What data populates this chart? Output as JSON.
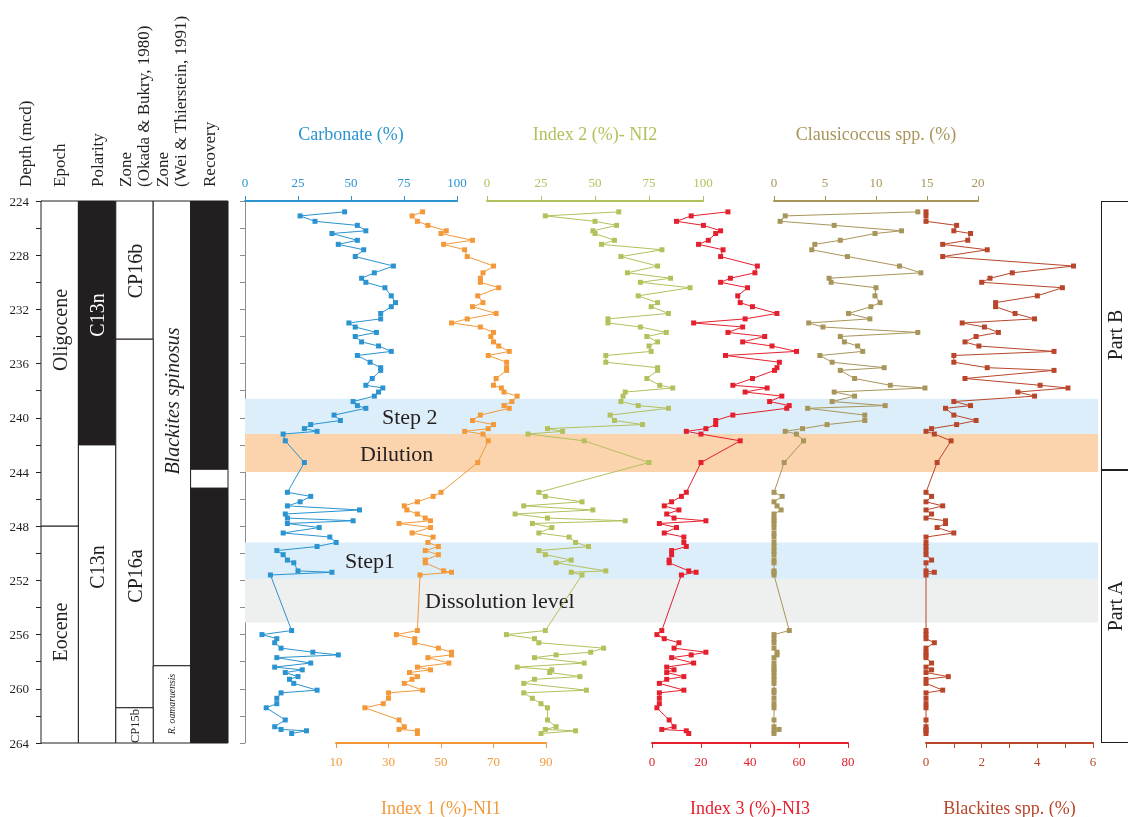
{
  "chart_data": [
    {
      "type": "bar",
      "ylabel": "Depth (mcd)",
      "categories": [
        "Epoch",
        "Polarity",
        "Zone (Okada & Bukry, 1980)",
        "Zone (Wei & Thierstein, 1991)",
        "Recovery"
      ],
      "ylim": [
        264,
        224
      ],
      "yticks": [
        224,
        {
          "value": 226,
          "label": null
        },
        228,
        {
          "value": 230,
          "label": null
        },
        232,
        {
          "value": 234,
          "label": null
        },
        236,
        {
          "value": 238,
          "label": null
        },
        240,
        {
          "value": 242,
          "label": null
        },
        244,
        {
          "value": 246,
          "label": null
        },
        248,
        {
          "value": 250,
          "label": null
        },
        252,
        {
          "value": 254,
          "label": null
        },
        256,
        {
          "value": 258,
          "label": null
        },
        260,
        {
          "value": 262,
          "label": null
        },
        264
      ],
      "series": [
        {
          "base": [
            224,
            224,
            224,
            224,
            224
          ],
          "values": [
            24,
            18,
            10.2,
            34.3,
            19.8
          ],
          "colors": [
            "#ffffff",
            "#231f20",
            "#ffffff",
            "#ffffff",
            "#231f20"
          ]
        },
        {
          "base": [
            248,
            242,
            234.2,
            258.3,
            243.8
          ],
          "values": [
            16,
            22,
            27.2,
            5.7,
            1.4
          ],
          "colors": [
            "#ffffff",
            "#ffffff",
            "#ffffff",
            "#ffffff",
            "#ffffff"
          ]
        },
        {
          "base": [
            null,
            null,
            261.4,
            null,
            245.2
          ],
          "values": [
            null,
            null,
            2.6,
            null,
            18.8
          ],
          "colors": [
            null,
            null,
            "#ffffff",
            null,
            "#231f20"
          ]
        }
      ],
      "annotations": [
        "Oligocene",
        "Eocene",
        "C13n",
        "C13n",
        "CP16b",
        "CP16a",
        "CP15b",
        "Blackites spinosus",
        "R. oamaruensis"
      ]
    },
    {
      "type": "line",
      "orientation": "horizontal",
      "xlabel": "Carbonate (%)",
      "xlim": [
        0,
        100
      ],
      "xticks": [
        0,
        25,
        50,
        75,
        100
      ],
      "ylim": [
        264,
        224
      ],
      "yticks": [
        224,
        {
          "value": 226,
          "label": null
        },
        228,
        {
          "value": 230,
          "label": null
        },
        232,
        {
          "value": 234,
          "label": null
        },
        236,
        {
          "value": 238,
          "label": null
        },
        240,
        {
          "value": 242,
          "label": null
        },
        244,
        {
          "value": 246,
          "label": null
        },
        248,
        {
          "value": 250,
          "label": null
        },
        252,
        {
          "value": 254,
          "label": null
        },
        256,
        {
          "value": 258,
          "label": null
        },
        260,
        {
          "value": 262,
          "label": null
        },
        264
      ],
      "tick_labels": "x",
      "marker": "square",
      "bands": [
        {
          "axis": "y",
          "from": 238.6,
          "to": 241.2,
          "label": "Step 2",
          "color": "#dbeef9"
        },
        {
          "axis": "y",
          "from": 241.2,
          "to": 244.0,
          "label": "Dilution",
          "color": "#fbd4ae"
        },
        {
          "axis": "y",
          "from": 249.2,
          "to": 251.9,
          "label": "Step1",
          "color": "#dbeef9"
        },
        {
          "axis": "y",
          "from": 251.9,
          "to": 255.1,
          "label": "Dissolution level",
          "color": "#eeefef"
        }
      ],
      "annotations": [
        "Part B",
        "Part A"
      ],
      "series": [
        {
          "color": "#2a93d0",
          "values": [
            47,
            26,
            33,
            53,
            57,
            41,
            53,
            44,
            56,
            52,
            70,
            61,
            55,
            57,
            66,
            69,
            71,
            69,
            64,
            64,
            49,
            52,
            62,
            52,
            55,
            63,
            69,
            53,
            59,
            64,
            64,
            60,
            57,
            65,
            63,
            61,
            51,
            53,
            57,
            42,
            45,
            31,
            28,
            34,
            18,
            19,
            28,
            20,
            31,
            26,
            20,
            54,
            19,
            20,
            51,
            20,
            35,
            18,
            40,
            43,
            34,
            15,
            18,
            20,
            23,
            25,
            41,
            12,
            22,
            8,
            15,
            14,
            17,
            32,
            44,
            15,
            31,
            14,
            27,
            19,
            25,
            21,
            23,
            34,
            17,
            15,
            15,
            10,
            19,
            14,
            17,
            29,
            22
          ],
          "x": [
            224.8,
            225.1,
            225.5,
            225.8,
            226.2,
            226.4,
            226.9,
            227.2,
            227.6,
            228.1,
            228.8,
            229.3,
            229.7,
            230.0,
            230.4,
            231.0,
            231.5,
            231.8,
            232.3,
            232.7,
            233.0,
            233.3,
            233.7,
            234.0,
            234.4,
            234.7,
            235.1,
            235.4,
            235.9,
            236.3,
            236.5,
            237.1,
            237.6,
            237.8,
            238.1,
            238.4,
            238.8,
            239.1,
            239.3,
            239.8,
            240.2,
            240.5,
            240.8,
            241.0,
            241.2,
            241.7,
            243.3,
            245.5,
            245.8,
            246.2,
            246.5,
            246.8,
            247.1,
            247.4,
            247.6,
            247.8,
            248.1,
            248.5,
            248.8,
            249.2,
            249.5,
            249.8,
            250.1,
            250.5,
            250.7,
            251.3,
            251.4,
            251.6,
            255.7,
            256.0,
            256.3,
            256.6,
            257.0,
            257.3,
            257.5,
            257.7,
            258.1,
            258.4,
            258.6,
            258.8,
            259.1,
            259.3,
            259.6,
            260.1,
            260.3,
            260.7,
            261.1,
            261.4,
            262.3,
            262.8,
            263.0,
            263.1,
            263.3
          ]
        }
      ]
    },
    {
      "type": "line",
      "orientation": "horizontal",
      "xlabel": "Index 1 (%)-NI1",
      "xlim": [
        10,
        90
      ],
      "xticks": [
        10,
        30,
        50,
        70,
        90
      ],
      "ylim": [
        264,
        224
      ],
      "tick_labels": "x",
      "marker": "square",
      "series": [
        {
          "color": "#f3993a",
          "values": [
            43,
            39,
            41,
            45,
            52,
            50,
            62,
            51,
            59,
            60,
            70,
            66,
            65,
            65,
            72,
            64,
            66,
            62,
            71,
            60,
            54,
            65,
            70,
            69,
            70,
            72,
            76,
            68,
            75,
            75,
            75,
            71,
            70,
            73,
            74,
            79,
            77,
            74,
            76,
            65,
            62,
            70,
            68,
            59,
            66,
            68,
            64,
            50,
            47,
            41,
            36,
            37,
            41,
            44,
            46,
            34,
            46,
            39,
            47,
            45,
            49,
            44,
            49,
            44,
            44,
            51,
            54,
            42,
            41,
            33,
            40,
            40,
            49,
            54,
            54,
            45,
            53,
            41,
            46,
            38,
            41,
            39,
            36,
            43,
            30,
            30,
            28,
            21,
            34,
            36,
            34,
            41,
            41
          ],
          "x": [
            224.8,
            225.1,
            225.5,
            225.8,
            226.2,
            226.4,
            226.9,
            227.2,
            227.6,
            228.1,
            228.8,
            229.3,
            229.7,
            230.0,
            230.4,
            231.0,
            231.5,
            231.8,
            232.3,
            232.7,
            233.0,
            233.3,
            233.7,
            234.0,
            234.4,
            234.7,
            235.1,
            235.4,
            235.9,
            236.3,
            236.5,
            237.1,
            237.6,
            237.8,
            238.1,
            238.4,
            238.8,
            239.1,
            239.3,
            239.8,
            240.2,
            240.5,
            240.8,
            241.0,
            241.2,
            241.7,
            243.3,
            245.5,
            245.8,
            246.2,
            246.5,
            246.8,
            247.1,
            247.4,
            247.6,
            247.8,
            248.1,
            248.5,
            248.8,
            249.2,
            249.5,
            249.8,
            250.1,
            250.5,
            250.7,
            251.3,
            251.4,
            251.6,
            255.7,
            256.0,
            256.3,
            256.6,
            257.0,
            257.3,
            257.5,
            257.7,
            258.1,
            258.4,
            258.6,
            258.8,
            259.1,
            259.3,
            259.6,
            260.1,
            260.3,
            260.7,
            261.1,
            261.4,
            262.3,
            262.8,
            263.0,
            263.1,
            263.3
          ]
        }
      ]
    },
    {
      "type": "line",
      "orientation": "horizontal",
      "xlabel": "Index 2 (%)- NI2",
      "xlim": [
        0,
        100
      ],
      "xticks": [
        0,
        25,
        50,
        75,
        100
      ],
      "ylim": [
        264,
        224
      ],
      "tick_labels": "x",
      "marker": "square",
      "series": [
        {
          "color": "#b4c05c",
          "values": [
            61,
            27,
            50,
            60,
            49,
            50,
            59,
            53,
            81,
            62,
            79,
            65,
            85,
            71,
            94,
            70,
            79,
            76,
            84,
            56,
            56,
            71,
            83,
            74,
            79,
            75,
            76,
            55,
            55,
            79,
            79,
            74,
            80,
            86,
            64,
            63,
            62,
            70,
            84,
            57,
            59,
            72,
            28,
            35,
            19,
            45,
            75,
            24,
            27,
            44,
            17,
            49,
            13,
            28,
            64,
            21,
            30,
            24,
            38,
            41,
            47,
            24,
            27,
            39,
            32,
            55,
            39,
            44,
            27,
            9,
            22,
            24,
            54,
            48,
            32,
            22,
            45,
            14,
            30,
            29,
            43,
            22,
            17,
            46,
            17,
            21,
            25,
            28,
            28,
            32,
            27,
            41,
            25
          ],
          "x": [
            224.8,
            225.1,
            225.5,
            225.8,
            226.2,
            226.4,
            226.9,
            227.2,
            227.6,
            228.1,
            228.8,
            229.3,
            229.7,
            230.0,
            230.4,
            231.0,
            231.5,
            231.8,
            232.3,
            232.7,
            233.0,
            233.3,
            233.7,
            234.0,
            234.4,
            234.7,
            235.1,
            235.4,
            235.9,
            236.3,
            236.5,
            237.1,
            237.6,
            237.8,
            238.1,
            238.4,
            238.8,
            239.1,
            239.3,
            239.8,
            240.2,
            240.5,
            240.8,
            241.0,
            241.2,
            241.7,
            243.3,
            245.5,
            245.8,
            246.2,
            246.5,
            246.8,
            247.1,
            247.4,
            247.6,
            247.8,
            248.1,
            248.5,
            248.8,
            249.2,
            249.5,
            249.8,
            250.1,
            250.5,
            250.7,
            251.3,
            251.4,
            251.6,
            255.7,
            256.0,
            256.3,
            256.6,
            257.0,
            257.3,
            257.5,
            257.7,
            258.1,
            258.4,
            258.6,
            258.8,
            259.1,
            259.3,
            259.6,
            260.1,
            260.3,
            260.7,
            261.1,
            261.4,
            262.3,
            262.8,
            263.0,
            263.1,
            263.3
          ]
        }
      ]
    },
    {
      "type": "line",
      "orientation": "horizontal",
      "xlabel": "Index 3 (%)-NI3",
      "xlim": [
        0,
        80
      ],
      "xticks": [
        0,
        20,
        40,
        60,
        80
      ],
      "ylim": [
        264,
        224
      ],
      "tick_labels": "x",
      "marker": "square",
      "series": [
        {
          "color": "#e5202e",
          "values": [
            31,
            16,
            10,
            21,
            28,
            26,
            23,
            19,
            29,
            28,
            43,
            42,
            32,
            28,
            39,
            35,
            36,
            41,
            51,
            38,
            17,
            37,
            31,
            46,
            37,
            49,
            59,
            30,
            52,
            51,
            50,
            41,
            33,
            47,
            38,
            53,
            48,
            56,
            55,
            33,
            26,
            26,
            22,
            14,
            20,
            36,
            20,
            14,
            12,
            8,
            5,
            11,
            6,
            9,
            22,
            3,
            10,
            5,
            13,
            13,
            14,
            8,
            8,
            7,
            7,
            15,
            18,
            12,
            4,
            2,
            5,
            11,
            9,
            22,
            16,
            8,
            17,
            6,
            9,
            6,
            13,
            6,
            3,
            13,
            3,
            3,
            3,
            2,
            7,
            9,
            4,
            14,
            15
          ],
          "x": [
            224.8,
            225.1,
            225.5,
            225.8,
            226.2,
            226.4,
            226.9,
            227.2,
            227.6,
            228.1,
            228.8,
            229.3,
            229.7,
            230.0,
            230.4,
            231.0,
            231.5,
            231.8,
            232.3,
            232.7,
            233.0,
            233.3,
            233.7,
            234.0,
            234.4,
            234.7,
            235.1,
            235.4,
            235.9,
            236.3,
            236.5,
            237.1,
            237.6,
            237.8,
            238.1,
            238.4,
            238.8,
            239.1,
            239.3,
            239.8,
            240.2,
            240.5,
            240.8,
            241.0,
            241.2,
            241.7,
            243.3,
            245.5,
            245.8,
            246.2,
            246.5,
            246.8,
            247.1,
            247.4,
            247.6,
            247.8,
            248.1,
            248.5,
            248.8,
            249.2,
            249.5,
            249.8,
            250.1,
            250.5,
            250.7,
            251.3,
            251.4,
            251.6,
            255.7,
            256.0,
            256.3,
            256.6,
            257.0,
            257.3,
            257.5,
            257.7,
            258.1,
            258.4,
            258.6,
            258.8,
            259.1,
            259.3,
            259.6,
            260.1,
            260.3,
            260.7,
            261.1,
            261.4,
            262.3,
            262.8,
            263.0,
            263.1,
            263.3
          ]
        }
      ]
    },
    {
      "type": "line",
      "orientation": "horizontal",
      "xlabel": "Clausicoccus spp. (%)",
      "xlim": [
        0,
        20
      ],
      "xticks": [
        0,
        5,
        10,
        15,
        20
      ],
      "ylim": [
        264,
        224
      ],
      "tick_labels": "x",
      "marker": "square",
      "series": [
        {
          "color": "#a8955a",
          "values": [
            14.1,
            1.1,
            0.6,
            5.9,
            12.5,
            9.9,
            6.5,
            4.0,
            3.7,
            7.2,
            12.3,
            14.4,
            5.4,
            5.6,
            10.0,
            9.9,
            10.4,
            9.5,
            7.3,
            9.4,
            3.4,
            4.8,
            14.1,
            6.5,
            6.9,
            8.2,
            8.7,
            4.5,
            5.7,
            10.8,
            6.5,
            7.9,
            11.4,
            14.8,
            5.9,
            7.9,
            5.7,
            10.9,
            3.3,
            8.9,
            8.9,
            5.2,
            2.8,
            1.1,
            2.2,
            2.9,
            1.0,
            0,
            0.8,
            0,
            0.3,
            0.7,
            0,
            0,
            0,
            0,
            0,
            0,
            0,
            0,
            0,
            0,
            0,
            0,
            0,
            0,
            0,
            0,
            1.5,
            0,
            0,
            0,
            0,
            0.3,
            0.3,
            0,
            0,
            0,
            0,
            0,
            0,
            0,
            0,
            0,
            0,
            0,
            0,
            0,
            0,
            0,
            0.5,
            0,
            0
          ],
          "x": [
            224.8,
            225.1,
            225.5,
            225.8,
            226.2,
            226.4,
            226.9,
            227.2,
            227.6,
            228.1,
            228.8,
            229.3,
            229.7,
            230.0,
            230.4,
            231.0,
            231.5,
            231.8,
            232.3,
            232.7,
            233.0,
            233.3,
            233.7,
            234.0,
            234.4,
            234.7,
            235.1,
            235.4,
            235.9,
            236.3,
            236.5,
            237.1,
            237.6,
            237.8,
            238.1,
            238.4,
            238.8,
            239.1,
            239.3,
            239.8,
            240.2,
            240.5,
            240.8,
            241.0,
            241.2,
            241.7,
            243.3,
            245.5,
            245.8,
            246.2,
            246.5,
            246.8,
            247.1,
            247.4,
            247.6,
            247.8,
            248.1,
            248.5,
            248.8,
            249.2,
            249.5,
            249.8,
            250.1,
            250.5,
            250.7,
            251.3,
            251.4,
            251.6,
            255.7,
            256.0,
            256.3,
            256.6,
            257.0,
            257.3,
            257.5,
            257.7,
            258.1,
            258.4,
            258.6,
            258.8,
            259.1,
            259.3,
            259.6,
            260.1,
            260.3,
            260.7,
            261.1,
            261.4,
            262.3,
            262.8,
            263.0,
            263.1,
            263.3
          ]
        }
      ]
    },
    {
      "type": "line",
      "orientation": "horizontal",
      "xlabel": "Blackites spp. (%)",
      "xlim": [
        0,
        6
      ],
      "xticks": [
        0,
        {
          "value": 1,
          "label": null
        },
        2,
        {
          "value": 3,
          "label": null
        },
        4,
        {
          "value": 5,
          "label": null
        },
        6
      ],
      "ylim": [
        264,
        224
      ],
      "tick_labels": "x",
      "marker": "square",
      "series": [
        {
          "color": "#b9462b",
          "values": [
            0,
            0,
            0,
            1.1,
            1.0,
            1.6,
            1.5,
            0.6,
            2.2,
            0.6,
            5.3,
            3.1,
            2.3,
            2.0,
            4.9,
            4.0,
            2.5,
            2.5,
            3.2,
            3.9,
            1.3,
            2.1,
            2.6,
            1.8,
            1.4,
            1.9,
            4.6,
            1.0,
            1.0,
            2.2,
            4.6,
            1.4,
            4.1,
            5.1,
            3.3,
            3.9,
            1.0,
            1.6,
            0.7,
            1.0,
            1.8,
            1.1,
            0.2,
            0,
            0.3,
            0.9,
            0.4,
            0,
            0.2,
            0,
            0.6,
            0,
            0.2,
            0,
            0.7,
            0.7,
            0.4,
            1.0,
            0,
            0,
            0,
            0,
            0,
            0.2,
            0,
            0,
            0.3,
            0,
            0,
            0,
            0,
            0.3,
            0,
            0,
            0,
            0,
            0.2,
            0,
            0.2,
            0,
            0.8,
            0,
            0,
            0.6,
            0,
            0,
            0,
            0,
            0,
            0,
            0,
            0,
            0
          ],
          "x": [
            224.8,
            225.1,
            225.5,
            225.8,
            226.2,
            226.4,
            226.9,
            227.2,
            227.6,
            228.1,
            228.8,
            229.3,
            229.7,
            230.0,
            230.4,
            231.0,
            231.5,
            231.8,
            232.3,
            232.7,
            233.0,
            233.3,
            233.7,
            234.0,
            234.4,
            234.7,
            235.1,
            235.4,
            235.9,
            236.3,
            236.5,
            237.1,
            237.6,
            237.8,
            238.1,
            238.4,
            238.8,
            239.1,
            239.3,
            239.8,
            240.2,
            240.5,
            240.8,
            241.0,
            241.2,
            241.7,
            243.3,
            245.5,
            245.8,
            246.2,
            246.5,
            246.8,
            247.1,
            247.4,
            247.6,
            247.8,
            248.1,
            248.5,
            248.8,
            249.2,
            249.5,
            249.8,
            250.1,
            250.5,
            250.7,
            251.3,
            251.4,
            251.6,
            255.7,
            256.0,
            256.3,
            256.6,
            257.0,
            257.3,
            257.5,
            257.7,
            258.1,
            258.4,
            258.6,
            258.8,
            259.1,
            259.3,
            259.6,
            260.1,
            260.3,
            260.7,
            261.1,
            261.4,
            262.3,
            262.8,
            263.0,
            263.1,
            263.3
          ]
        }
      ]
    }
  ]
}
